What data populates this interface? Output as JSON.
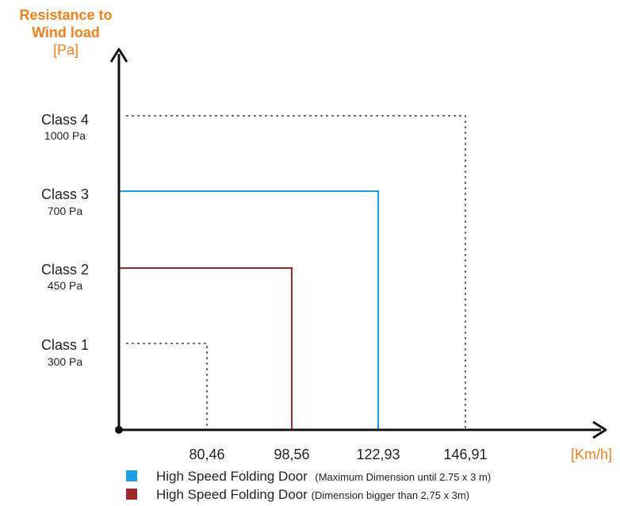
{
  "chart_data": {
    "type": "step",
    "ylabel": "Resistance to Wind load",
    "yunit": "[Pa]",
    "xunit": "[Km/h]",
    "y_classes": [
      {
        "name": "Class 1",
        "pressure": "300 Pa",
        "pa": 300
      },
      {
        "name": "Class 2",
        "pressure": "450 Pa",
        "pa": 450
      },
      {
        "name": "Class 3",
        "pressure": "700 Pa",
        "pa": 700
      },
      {
        "name": "Class 4",
        "pressure": "1000 Pa",
        "pa": 1000
      }
    ],
    "x_ticks": [
      "80,46",
      "98,56",
      "122,93",
      "146,91"
    ],
    "x_values": [
      80.46,
      98.56,
      122.93,
      146.91
    ],
    "reference_lines": [
      {
        "class": "Class 1",
        "speed": 80.46,
        "style": "dotted"
      },
      {
        "class": "Class 4",
        "speed": 146.91,
        "style": "dotted"
      }
    ],
    "series": [
      {
        "name": "High Speed Folding Door",
        "note": "(Maximum Dimension until 2.75 x 3 m)",
        "color": "#1aa0e0",
        "class": "Class 3",
        "pa": 700,
        "speed": 122.93
      },
      {
        "name": "High Speed Folding Door",
        "note": "(Dimension bigger than 2,75 x 3m)",
        "color": "#a2272d",
        "class": "Class 2",
        "pa": 450,
        "speed": 98.56
      }
    ]
  }
}
